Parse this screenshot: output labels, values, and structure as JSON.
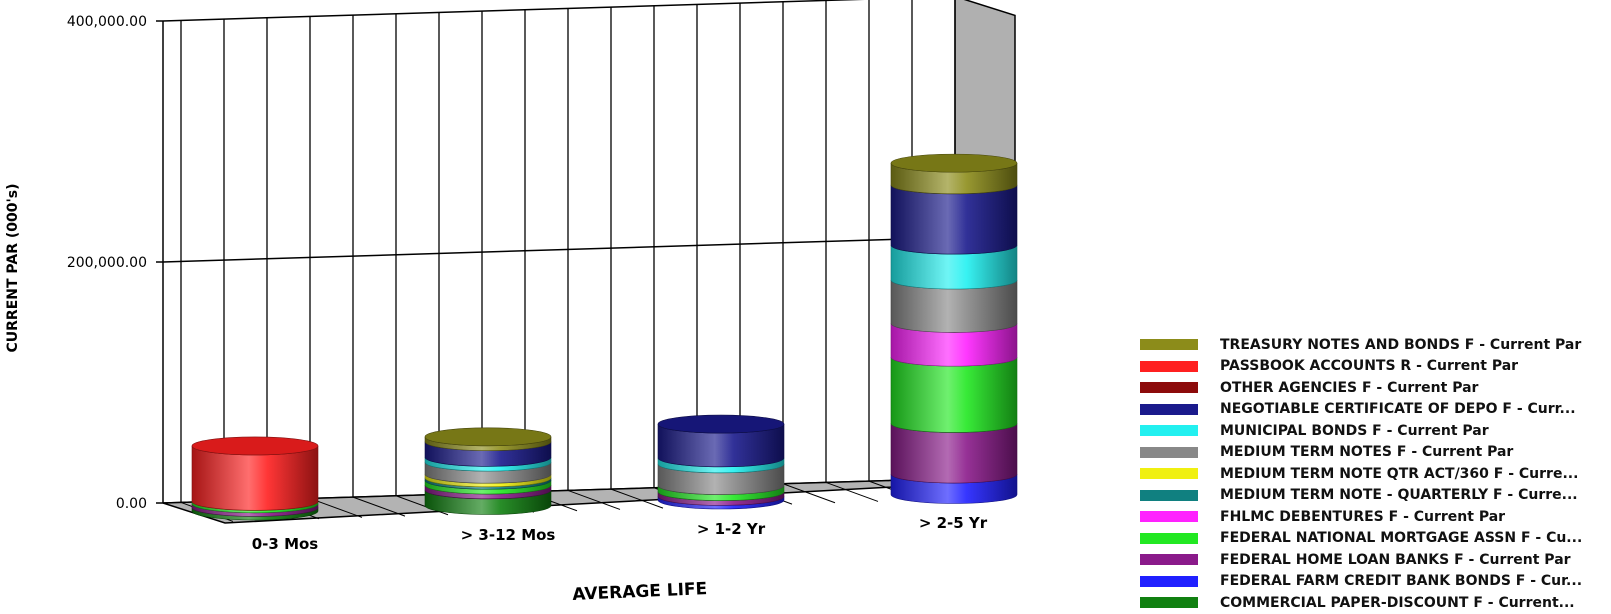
{
  "chart_data": {
    "type": "bar",
    "stacked": true,
    "style": "3d-cylinder",
    "xlabel": "AVERAGE LIFE",
    "ylabel": "CURRENT PAR (000's)",
    "ylim": [
      0,
      400000
    ],
    "yticks": [
      "0.00",
      "200,000.00",
      "400,000.00"
    ],
    "categories": [
      "0-3 Mos",
      "> 3-12 Mos",
      "> 1-2 Yr",
      "> 2-5 Yr"
    ],
    "grid": true,
    "legend_position": "bottom-right",
    "series": [
      {
        "name": "COMMERCIAL PAPER-DISCOUNT F - Current Par",
        "color": "#108010",
        "values": [
          3000,
          13000,
          0,
          0
        ]
      },
      {
        "name": "FEDERAL FARM CREDIT BANK BONDS F - Current Par",
        "color": "#2020ff",
        "values": [
          0,
          0,
          3000,
          17000
        ]
      },
      {
        "name": "FEDERAL HOME LOAN BANKS F - Current Par",
        "color": "#8a1a8a",
        "values": [
          3000,
          4000,
          4000,
          42000
        ]
      },
      {
        "name": "FEDERAL NATIONAL MORTGAGE ASSN F - Current Par",
        "color": "#22e822",
        "values": [
          2000,
          4000,
          5000,
          55000
        ]
      },
      {
        "name": "FHLMC DEBENTURES F - Current Par",
        "color": "#ff22ff",
        "values": [
          0,
          0,
          0,
          28000
        ]
      },
      {
        "name": "MEDIUM TERM NOTE - QUARTERLY F - Current Par",
        "color": "#108080",
        "values": [
          0,
          2000,
          0,
          0
        ]
      },
      {
        "name": "MEDIUM TERM NOTE QTR ACT/360 F - Current Par",
        "color": "#f0f010",
        "values": [
          0,
          3000,
          0,
          0
        ]
      },
      {
        "name": "MEDIUM TERM NOTES F - Current Par",
        "color": "#888888",
        "values": [
          0,
          10000,
          18000,
          36000
        ]
      },
      {
        "name": "MUNICIPAL BONDS F - Current Par",
        "color": "#22f0f0",
        "values": [
          0,
          4000,
          5000,
          29000
        ]
      },
      {
        "name": "NEGOTIABLE CERTIFICATE OF DEPO F - Current Par",
        "color": "#1a1a8c",
        "values": [
          0,
          13000,
          28000,
          50000
        ]
      },
      {
        "name": "OTHER AGENCIES F - Current Par",
        "color": "#8c0a0a",
        "values": [
          0,
          0,
          0,
          0
        ]
      },
      {
        "name": "PASSBOOK ACCOUNTS R - Current Par",
        "color": "#ff2020",
        "values": [
          46000,
          0,
          0,
          0
        ]
      },
      {
        "name": "TREASURY NOTES AND BONDS F - Current Par",
        "color": "#8c8c1a",
        "values": [
          0,
          4000,
          0,
          18000
        ]
      }
    ]
  },
  "legend": [
    {
      "label": "TREASURY NOTES AND BONDS F - Current Par",
      "color": "#8c8c1a"
    },
    {
      "label": "PASSBOOK ACCOUNTS R - Current Par",
      "color": "#ff2020"
    },
    {
      "label": "OTHER AGENCIES F - Current Par",
      "color": "#8c0a0a"
    },
    {
      "label": "NEGOTIABLE CERTIFICATE OF DEPO F - Curr...",
      "color": "#1a1a8c"
    },
    {
      "label": "MUNICIPAL BONDS F - Current Par",
      "color": "#22f0f0"
    },
    {
      "label": "MEDIUM TERM NOTES F - Current Par",
      "color": "#888888"
    },
    {
      "label": "MEDIUM TERM NOTE QTR ACT/360 F - Curre...",
      "color": "#f0f010"
    },
    {
      "label": "MEDIUM TERM NOTE - QUARTERLY F - Curre...",
      "color": "#108080"
    },
    {
      "label": "FHLMC DEBENTURES F - Current Par",
      "color": "#ff22ff"
    },
    {
      "label": "FEDERAL NATIONAL MORTGAGE ASSN F - Cu...",
      "color": "#22e822"
    },
    {
      "label": "FEDERAL HOME LOAN BANKS F - Current Par",
      "color": "#8a1a8a"
    },
    {
      "label": "FEDERAL FARM CREDIT BANK BONDS F - Cur...",
      "color": "#2020ff"
    },
    {
      "label": "COMMERCIAL PAPER-DISCOUNT F - Current...",
      "color": "#108010"
    }
  ]
}
